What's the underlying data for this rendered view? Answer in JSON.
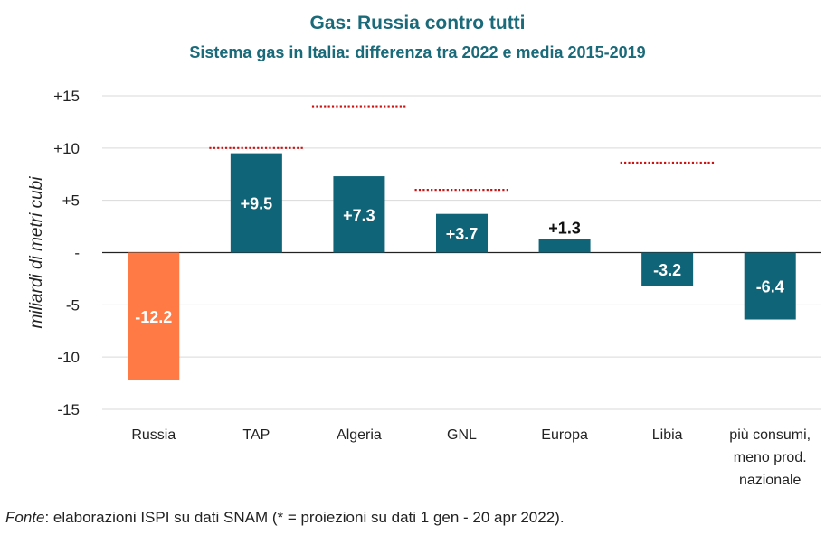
{
  "chart_data": {
    "type": "bar",
    "title": "Gas: Russia contro tutti",
    "subtitle": "Sistema gas in Italia: differenza tra 2022 e media 2015-2019",
    "ylabel": "miliardi di metri cubi",
    "xlabel": "",
    "ylim": [
      -15,
      15
    ],
    "yticks": [
      {
        "value": 15,
        "label": "+15"
      },
      {
        "value": 10,
        "label": "+10"
      },
      {
        "value": 5,
        "label": "+5"
      },
      {
        "value": 0,
        "label": "-"
      },
      {
        "value": -5,
        "label": "-5"
      },
      {
        "value": -10,
        "label": "-10"
      },
      {
        "value": -15,
        "label": "-15"
      }
    ],
    "categories": [
      "Russia",
      "TAP",
      "Algeria",
      "GNL",
      "Europa",
      "Libia",
      "più consumi, meno prod. nazionale"
    ],
    "category_lines": [
      [
        "Russia"
      ],
      [
        "TAP"
      ],
      [
        "Algeria"
      ],
      [
        "GNL"
      ],
      [
        "Europa"
      ],
      [
        "Libia"
      ],
      [
        "più consumi,",
        "meno prod.",
        "nazionale"
      ]
    ],
    "values": [
      -12.2,
      9.5,
      7.3,
      3.7,
      1.3,
      -3.2,
      -6.4
    ],
    "value_labels": [
      "-12.2",
      "+9.5",
      "+7.3",
      "+3.7",
      "+1.3",
      "-3.2",
      "-6.4"
    ],
    "bar_colors": [
      "#ff7a45",
      "#0f6478",
      "#0f6478",
      "#0f6478",
      "#0f6478",
      "#0f6478",
      "#0f6478"
    ],
    "reference_markers": [
      {
        "category": "TAP",
        "value": 10
      },
      {
        "category": "Algeria",
        "value": 14
      },
      {
        "category": "GNL",
        "value": 6
      },
      {
        "category": "Libia",
        "value": 8.6
      }
    ],
    "marker_color": "#cc1111",
    "grid": true
  },
  "source": {
    "label": "Fonte",
    "text": ": elaborazioni ISPI su dati SNAM (* = proiezioni su dati 1 gen - 20 apr 2022)."
  }
}
